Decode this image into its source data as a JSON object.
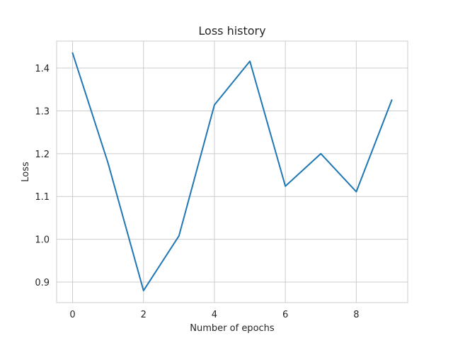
{
  "chart_data": {
    "type": "line",
    "title": "Loss history",
    "xlabel": "Number of epochs",
    "ylabel": "Loss",
    "x": [
      0,
      1,
      2,
      3,
      4,
      5,
      6,
      7,
      8,
      9
    ],
    "series": [
      {
        "values": [
          1.435,
          1.178,
          0.88,
          1.008,
          1.314,
          1.416,
          1.124,
          1.2,
          1.111,
          1.325
        ],
        "color": "#1f77b4"
      }
    ],
    "xticks": [
      0,
      2,
      4,
      6,
      8
    ],
    "yticks": [
      0.9,
      1.0,
      1.1,
      1.2,
      1.3,
      1.4
    ],
    "xtick_labels": [
      "0",
      "2",
      "4",
      "6",
      "8"
    ],
    "ytick_labels": [
      "0.9",
      "1.0",
      "1.1",
      "1.2",
      "1.3",
      "1.4"
    ],
    "xlim": [
      -0.45,
      9.45
    ],
    "ylim": [
      0.852,
      1.463
    ],
    "grid": true
  }
}
